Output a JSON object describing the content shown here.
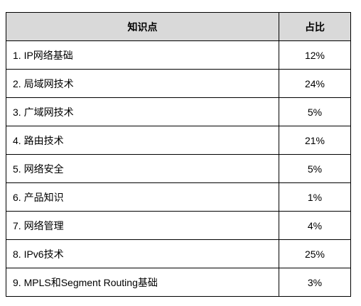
{
  "table": {
    "headers": [
      "知识点",
      "占比"
    ],
    "rows": [
      {
        "topic": "1. IP网络基础",
        "ratio": "12%"
      },
      {
        "topic": "2.  局域网技术",
        "ratio": "24%"
      },
      {
        "topic": "3.  广域网技术",
        "ratio": "5%"
      },
      {
        "topic": "4.  路由技术",
        "ratio": "21%"
      },
      {
        "topic": "5.  网络安全",
        "ratio": "5%"
      },
      {
        "topic": "6.  产品知识",
        "ratio": "1%"
      },
      {
        "topic": "7.  网络管理",
        "ratio": "4%"
      },
      {
        "topic": "8. IPv6技术",
        "ratio": "25%"
      },
      {
        "topic": "9. MPLS和Segment Routing基础",
        "ratio": "3%"
      }
    ]
  }
}
